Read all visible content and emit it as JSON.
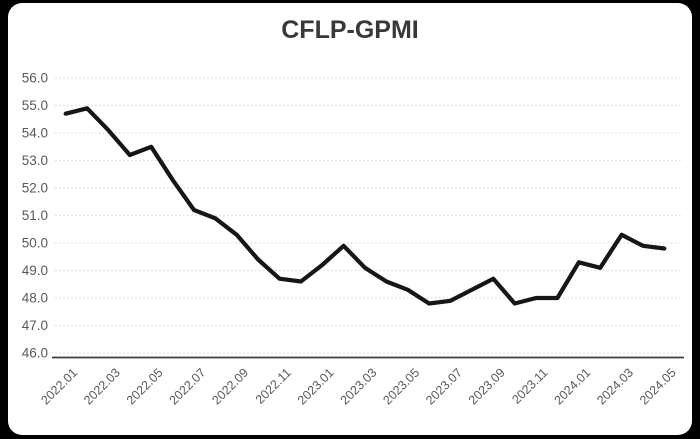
{
  "window": {
    "background_color": "#000000",
    "card_background_color": "#ffffff"
  },
  "chart": {
    "title": "CFLP-GPMI",
    "title_color": "#383838",
    "axis_label_color": "#595959",
    "gridline_color": "#cfe2e2",
    "line_color": "#161616",
    "axis_line_color": "#3c3c3c"
  },
  "chart_data": {
    "type": "line",
    "title": "CFLP-GPMI",
    "x": [
      "2022.01",
      "2022.02",
      "2022.03",
      "2022.04",
      "2022.05",
      "2022.06",
      "2022.07",
      "2022.08",
      "2022.09",
      "2022.10",
      "2022.11",
      "2022.12",
      "2023.01",
      "2023.02",
      "2023.03",
      "2023.04",
      "2023.05",
      "2023.06",
      "2023.07",
      "2023.08",
      "2023.09",
      "2023.10",
      "2023.11",
      "2023.12",
      "2024.01",
      "2024.02",
      "2024.03",
      "2024.04",
      "2024.05"
    ],
    "values": [
      54.7,
      54.9,
      54.1,
      53.2,
      53.5,
      52.3,
      51.2,
      50.9,
      50.3,
      49.4,
      48.7,
      48.6,
      49.2,
      49.9,
      49.1,
      48.6,
      48.3,
      47.8,
      47.9,
      48.3,
      48.7,
      47.8,
      48.0,
      48.0,
      49.3,
      49.1,
      50.3,
      49.9,
      49.8
    ],
    "x_tick_labels": [
      "2022.01",
      "2022.03",
      "2022.05",
      "2022.07",
      "2022.09",
      "2022.11",
      "2023.01",
      "2023.03",
      "2023.05",
      "2023.07",
      "2023.09",
      "2023.11",
      "2024.01",
      "2024.03",
      "2024.05"
    ],
    "x_tick_every": 2,
    "y_ticks": [
      "56.0",
      "55.0",
      "54.0",
      "53.0",
      "52.0",
      "51.0",
      "50.0",
      "49.0",
      "48.0",
      "47.0",
      "46.0"
    ],
    "ylim": [
      46.0,
      56.0
    ],
    "xlabel": "",
    "ylabel": "",
    "grid": "horizontal-dashed",
    "legend": "none",
    "markers": "none"
  }
}
